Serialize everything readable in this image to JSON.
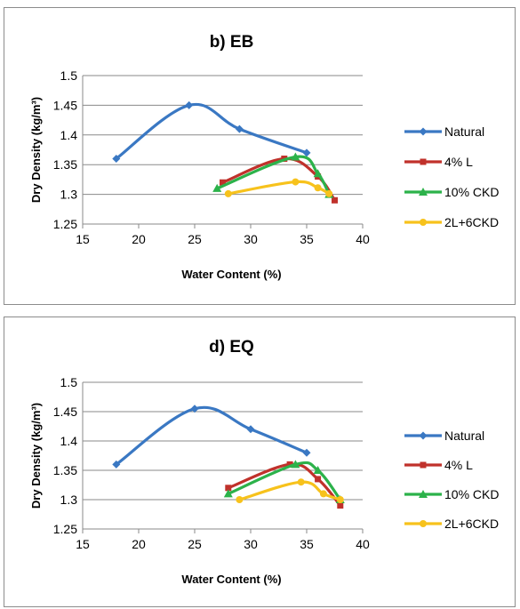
{
  "chart_data": [
    {
      "type": "line",
      "title": "b) EB",
      "xlabel": "Water Content (%)",
      "ylabel": "Dry Density (kg/m³)",
      "xlim": [
        15,
        40
      ],
      "ylim": [
        1.25,
        1.5
      ],
      "x_ticks": [
        "15",
        "20",
        "25",
        "30",
        "35",
        "40"
      ],
      "y_ticks": [
        "1.25",
        "1.3",
        "1.35",
        "1.4",
        "1.45",
        "1.5"
      ],
      "grid": "horizontal",
      "legend": "right",
      "series": [
        {
          "name": "Natural",
          "color": "#3a78c3",
          "marker": "diamond",
          "points": [
            [
              18,
              1.36
            ],
            [
              24.5,
              1.45
            ],
            [
              29,
              1.41
            ],
            [
              35,
              1.37
            ]
          ]
        },
        {
          "name": "4% L",
          "color": "#c0312b",
          "marker": "square",
          "points": [
            [
              27.5,
              1.32
            ],
            [
              33,
              1.36
            ],
            [
              36,
              1.33
            ],
            [
              37.5,
              1.29
            ]
          ]
        },
        {
          "name": "10% CKD",
          "color": "#2cb24a",
          "marker": "triangle",
          "points": [
            [
              27,
              1.31
            ],
            [
              34,
              1.363
            ],
            [
              36,
              1.335
            ],
            [
              37,
              1.3
            ]
          ]
        },
        {
          "name": "2L+6CKD",
          "color": "#f7c21c",
          "marker": "circle",
          "points": [
            [
              28,
              1.301
            ],
            [
              34,
              1.321
            ],
            [
              36,
              1.311
            ],
            [
              37,
              1.301
            ]
          ]
        }
      ]
    },
    {
      "type": "line",
      "title": "d) EQ",
      "xlabel": "Water Content (%)",
      "ylabel": "Dry Density (kg/m³)",
      "xlim": [
        15,
        40
      ],
      "ylim": [
        1.25,
        1.5
      ],
      "x_ticks": [
        "15",
        "20",
        "25",
        "30",
        "35",
        "40"
      ],
      "y_ticks": [
        "1.25",
        "1.3",
        "1.35",
        "1.4",
        "1.45",
        "1.5"
      ],
      "grid": "horizontal",
      "legend": "right",
      "series": [
        {
          "name": "Natural",
          "color": "#3a78c3",
          "marker": "diamond",
          "points": [
            [
              18,
              1.36
            ],
            [
              25,
              1.455
            ],
            [
              30,
              1.42
            ],
            [
              35,
              1.38
            ]
          ]
        },
        {
          "name": "4% L",
          "color": "#c0312b",
          "marker": "square",
          "points": [
            [
              28,
              1.32
            ],
            [
              33.5,
              1.36
            ],
            [
              36,
              1.335
            ],
            [
              38,
              1.29
            ]
          ]
        },
        {
          "name": "10% CKD",
          "color": "#2cb24a",
          "marker": "triangle",
          "points": [
            [
              28,
              1.31
            ],
            [
              34,
              1.36
            ],
            [
              36,
              1.35
            ],
            [
              38,
              1.3
            ]
          ]
        },
        {
          "name": "2L+6CKD",
          "color": "#f7c21c",
          "marker": "circle",
          "points": [
            [
              29,
              1.3
            ],
            [
              34.5,
              1.33
            ],
            [
              36.5,
              1.31
            ],
            [
              38,
              1.3
            ]
          ]
        }
      ]
    }
  ]
}
